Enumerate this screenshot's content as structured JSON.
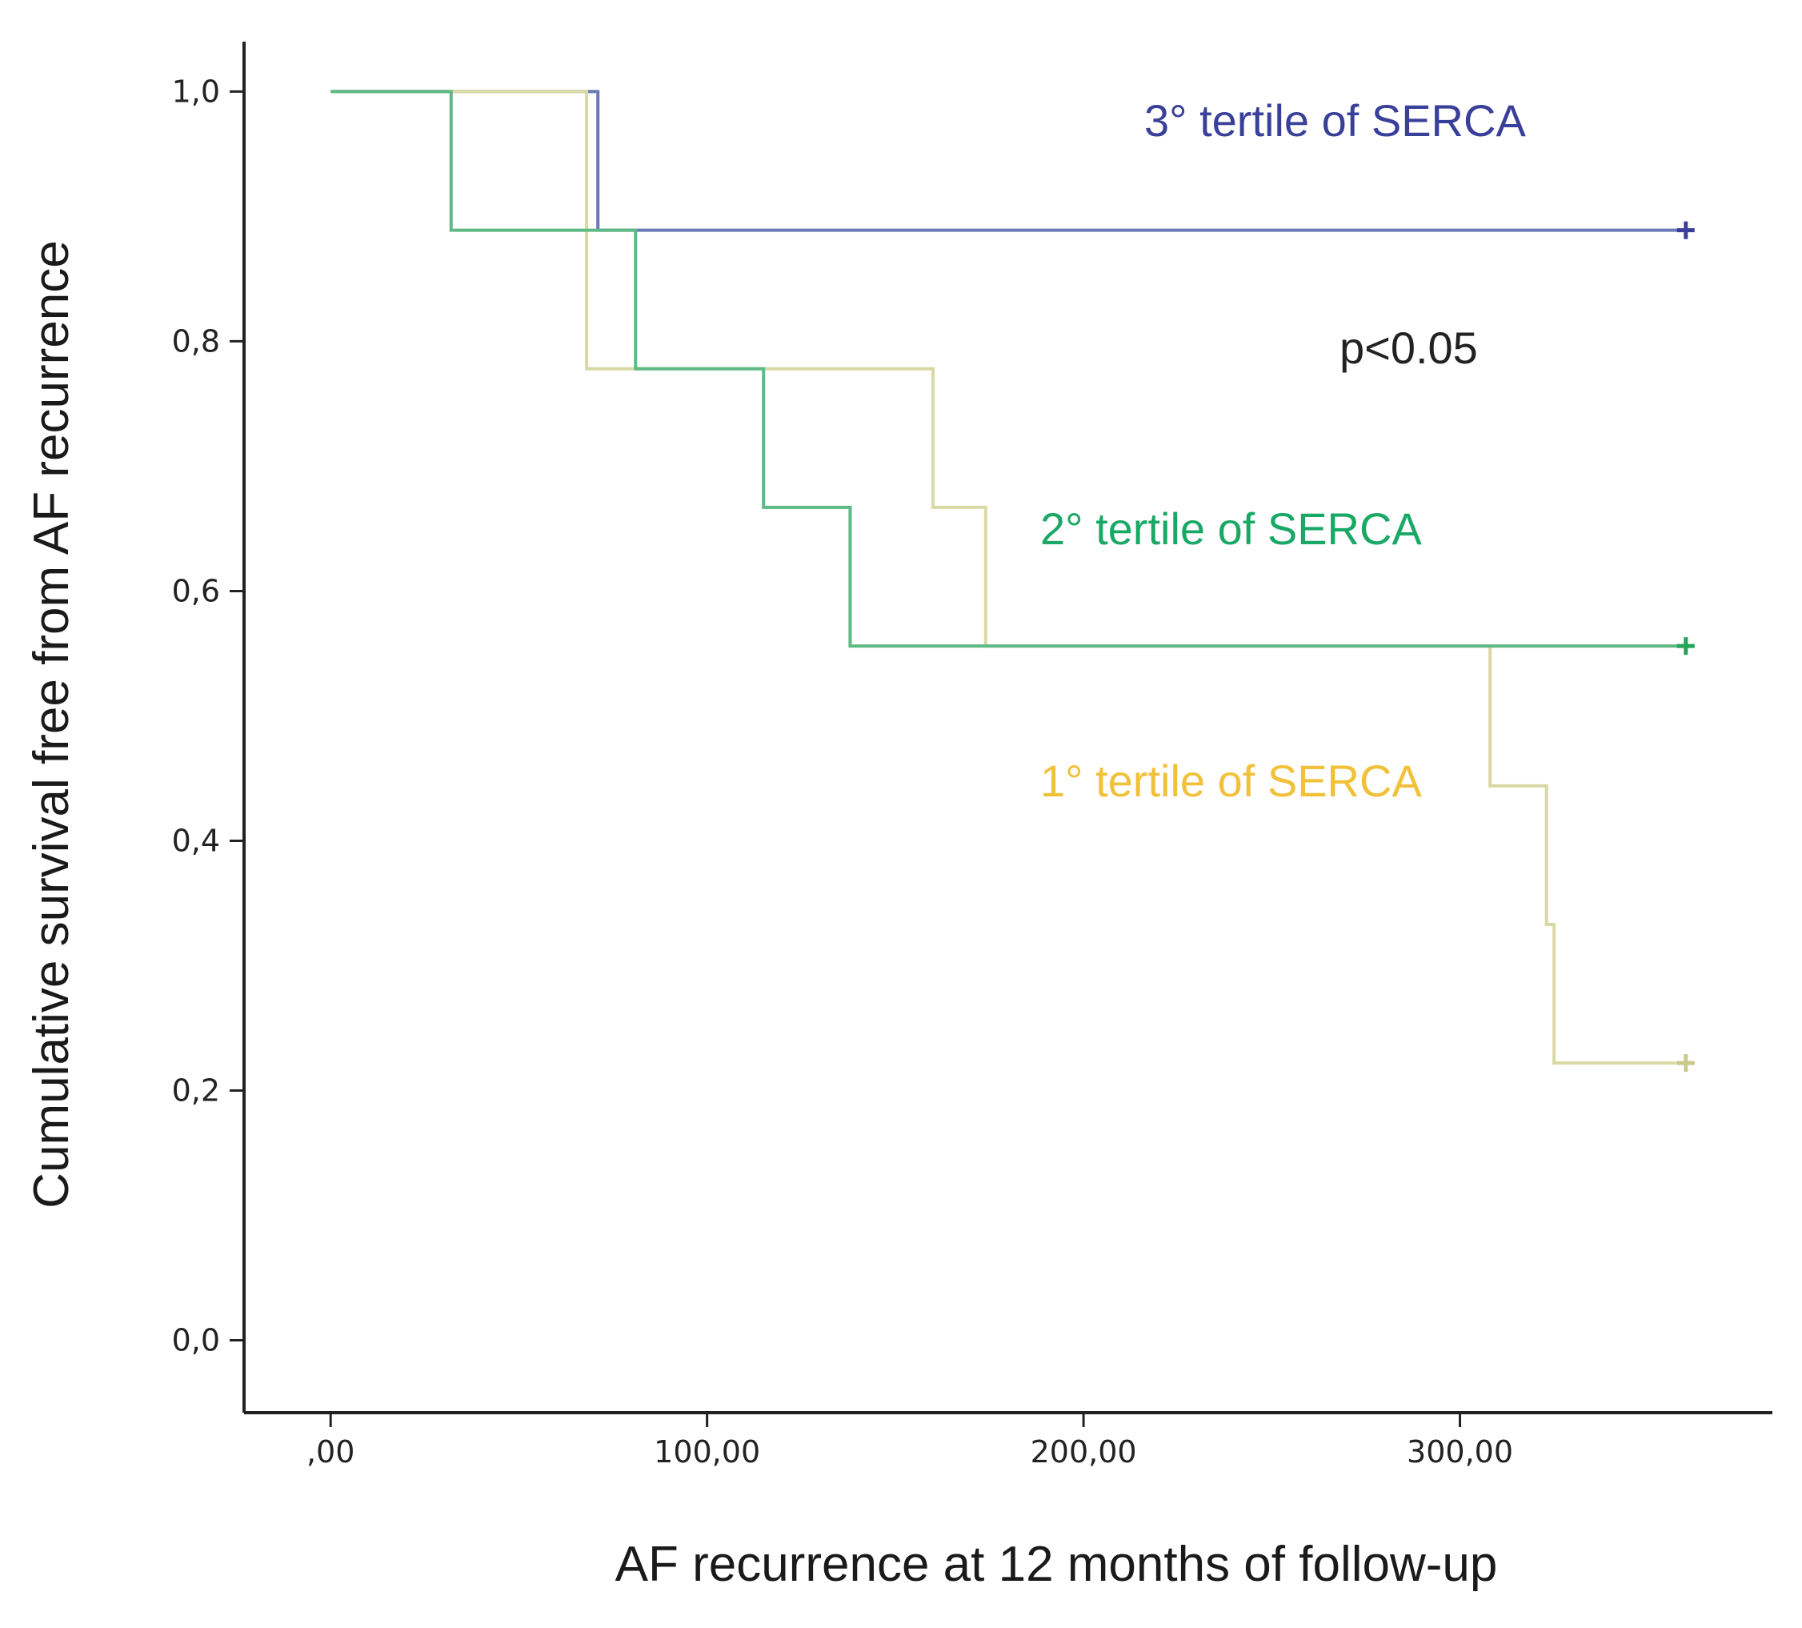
{
  "chart_data": {
    "type": "line",
    "subtype": "kaplan-meier-step",
    "title": "",
    "xlabel": "AF recurrence at 12 months of follow-up",
    "ylabel": "Cumulative survival free from AF recurrence",
    "xlim": [
      -23,
      383
    ],
    "ylim": [
      -0.058,
      1.04
    ],
    "x_ticks": [
      0,
      100,
      200,
      300
    ],
    "x_tick_labels": [
      ",00",
      "100,00",
      "200,00",
      "300,00"
    ],
    "y_ticks": [
      0,
      0.2,
      0.4,
      0.6,
      0.8,
      1.0
    ],
    "y_tick_labels": [
      "0,0",
      "0,2",
      "0,4",
      "0,6",
      "0,8",
      "1,0"
    ],
    "grid": false,
    "series": [
      {
        "name": "3° tertile of SERCA",
        "color": "#6a78b8",
        "label_color": "#3a3f9a",
        "censor_color": "#3a3f9a",
        "steps": [
          [
            0,
            1.0
          ],
          [
            71,
            0.889
          ],
          [
            360,
            0.889
          ]
        ],
        "censored": [
          [
            360,
            0.889
          ]
        ]
      },
      {
        "name": "1° tertile of SERCA",
        "color": "#d9d9a4",
        "label_color": "#f2c13a",
        "censor_color": "#c9c98a",
        "steps": [
          [
            0,
            1.0
          ],
          [
            68,
            0.778
          ],
          [
            160,
            0.667
          ],
          [
            174,
            0.556
          ],
          [
            308,
            0.444
          ],
          [
            323,
            0.333
          ],
          [
            325,
            0.222
          ],
          [
            360,
            0.222
          ]
        ],
        "censored": [
          [
            360,
            0.222
          ]
        ]
      },
      {
        "name": "2° tertile of SERCA",
        "color": "#5fb985",
        "label_color": "#1aa866",
        "censor_color": "#24a35a",
        "steps": [
          [
            0,
            1.0
          ],
          [
            32,
            0.889
          ],
          [
            81,
            0.778
          ],
          [
            115,
            0.667
          ],
          [
            138,
            0.556
          ],
          [
            360,
            0.556
          ]
        ],
        "censored": [
          [
            360,
            0.556
          ]
        ]
      }
    ],
    "annotations": [
      {
        "text": "p<0.05",
        "x": 268,
        "y": 0.795,
        "color": "#222222"
      }
    ]
  }
}
